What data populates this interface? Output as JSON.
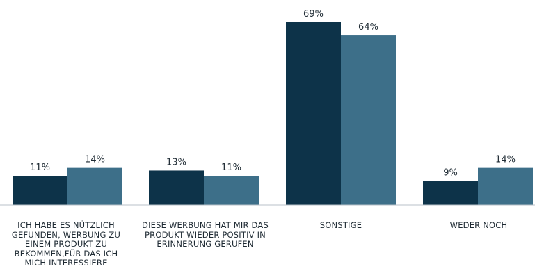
{
  "chart_data": {
    "type": "bar",
    "categories": [
      "ICH HABE ES NÜTZLICH GEFUNDEN, WERBUNG ZU EINEM PRODUKT ZU BEKOMMEN,FÜR DAS ICH MICH INTERESSIERE",
      "DIESE WERBUNG HAT MIR DAS PRODUKT WIEDER POSITIV IN ERINNERUNG GERUFEN",
      "SONSTIGE",
      "WEDER NOCH"
    ],
    "series": [
      {
        "values": [
          11,
          13,
          69,
          9
        ],
        "color": "#0d3349"
      },
      {
        "values": [
          14,
          11,
          64,
          14
        ],
        "color": "#3d6f89"
      }
    ],
    "value_labels": [
      [
        "11%",
        "13%",
        "69%",
        "9%"
      ],
      [
        "14%",
        "11%",
        "64%",
        "14%"
      ]
    ],
    "ylim": [
      0,
      69
    ],
    "grid": false,
    "axis_line": true
  }
}
